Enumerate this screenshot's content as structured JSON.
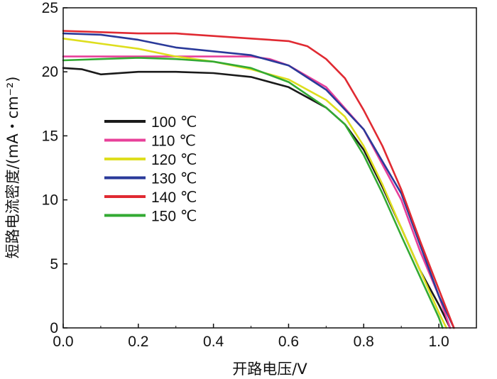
{
  "chart_data": {
    "type": "line",
    "xlabel": "开路电压/V",
    "ylabel": "短路电流密度/(mA・cm⁻²)",
    "xlim": [
      0,
      1.1
    ],
    "ylim": [
      0,
      25
    ],
    "xticks": [
      "0.0",
      "0.2",
      "0.4",
      "0.6",
      "0.8",
      "1.0"
    ],
    "yticks": [
      "0",
      "5",
      "10",
      "15",
      "20",
      "25"
    ],
    "grid": false,
    "legend_position": "middle-left",
    "series": [
      {
        "name": "100 ℃",
        "color": "#1a1a1a",
        "points": [
          [
            0,
            20.3
          ],
          [
            0.05,
            20.2
          ],
          [
            0.1,
            19.8
          ],
          [
            0.2,
            20.0
          ],
          [
            0.3,
            20.0
          ],
          [
            0.4,
            19.9
          ],
          [
            0.5,
            19.6
          ],
          [
            0.6,
            18.8
          ],
          [
            0.7,
            17.2
          ],
          [
            0.75,
            15.9
          ],
          [
            0.8,
            13.9
          ],
          [
            0.85,
            11.0
          ],
          [
            0.9,
            7.8
          ],
          [
            0.95,
            4.5
          ],
          [
            1.0,
            1.8
          ],
          [
            1.03,
            0
          ]
        ]
      },
      {
        "name": "110 ℃",
        "color": "#e8409a",
        "points": [
          [
            0,
            21.2
          ],
          [
            0.1,
            21.2
          ],
          [
            0.2,
            21.2
          ],
          [
            0.3,
            21.2
          ],
          [
            0.4,
            21.2
          ],
          [
            0.5,
            21.2
          ],
          [
            0.55,
            21.0
          ],
          [
            0.6,
            20.5
          ],
          [
            0.7,
            18.8
          ],
          [
            0.8,
            15.5
          ],
          [
            0.9,
            10.0
          ],
          [
            0.95,
            6.0
          ],
          [
            1.0,
            2.5
          ],
          [
            1.03,
            0
          ]
        ]
      },
      {
        "name": "120 ℃",
        "color": "#dede1e",
        "points": [
          [
            0,
            22.6
          ],
          [
            0.1,
            22.2
          ],
          [
            0.2,
            21.8
          ],
          [
            0.3,
            21.2
          ],
          [
            0.4,
            20.8
          ],
          [
            0.5,
            20.2
          ],
          [
            0.6,
            19.4
          ],
          [
            0.7,
            17.8
          ],
          [
            0.75,
            16.5
          ],
          [
            0.8,
            14.2
          ],
          [
            0.85,
            11.2
          ],
          [
            0.9,
            7.8
          ],
          [
            0.95,
            4.5
          ],
          [
            1.0,
            1.2
          ],
          [
            1.02,
            0
          ]
        ]
      },
      {
        "name": "130 ℃",
        "color": "#2a3a9a",
        "points": [
          [
            0,
            23.0
          ],
          [
            0.1,
            22.9
          ],
          [
            0.2,
            22.5
          ],
          [
            0.3,
            21.9
          ],
          [
            0.4,
            21.6
          ],
          [
            0.5,
            21.3
          ],
          [
            0.6,
            20.5
          ],
          [
            0.7,
            18.6
          ],
          [
            0.8,
            15.5
          ],
          [
            0.85,
            13.0
          ],
          [
            0.9,
            10.5
          ],
          [
            0.95,
            6.5
          ],
          [
            1.0,
            2.5
          ],
          [
            1.04,
            0
          ]
        ]
      },
      {
        "name": "140 ℃",
        "color": "#e02a32",
        "points": [
          [
            0,
            23.2
          ],
          [
            0.1,
            23.1
          ],
          [
            0.2,
            23.0
          ],
          [
            0.3,
            23.0
          ],
          [
            0.4,
            22.8
          ],
          [
            0.5,
            22.6
          ],
          [
            0.6,
            22.4
          ],
          [
            0.65,
            22.0
          ],
          [
            0.7,
            21.0
          ],
          [
            0.75,
            19.5
          ],
          [
            0.8,
            17.0
          ],
          [
            0.85,
            14.2
          ],
          [
            0.9,
            10.8
          ],
          [
            0.95,
            6.8
          ],
          [
            1.0,
            3.0
          ],
          [
            1.04,
            0
          ]
        ]
      },
      {
        "name": "150 ℃",
        "color": "#33aa33",
        "points": [
          [
            0,
            20.9
          ],
          [
            0.1,
            21.0
          ],
          [
            0.2,
            21.1
          ],
          [
            0.3,
            21.0
          ],
          [
            0.4,
            20.8
          ],
          [
            0.5,
            20.3
          ],
          [
            0.6,
            19.2
          ],
          [
            0.7,
            17.2
          ],
          [
            0.75,
            15.9
          ],
          [
            0.8,
            13.5
          ],
          [
            0.85,
            10.5
          ],
          [
            0.9,
            7.2
          ],
          [
            0.95,
            4.0
          ],
          [
            1.0,
            0.8
          ],
          [
            1.01,
            0
          ]
        ]
      }
    ]
  }
}
